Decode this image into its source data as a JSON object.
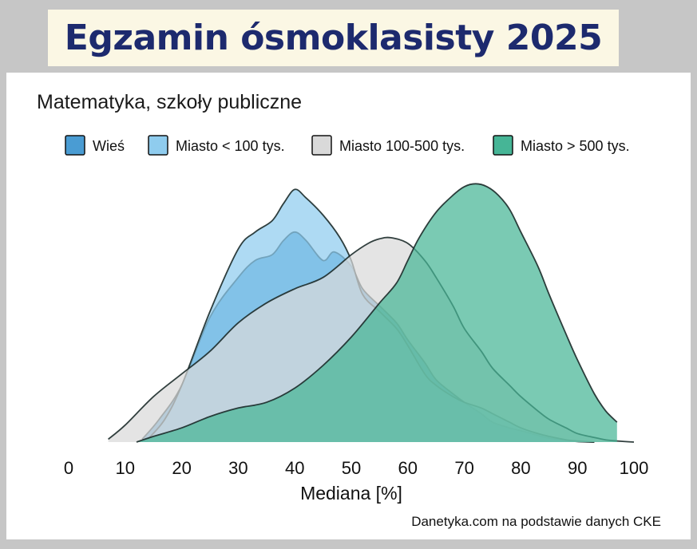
{
  "header": {
    "title": "Egzamin ósmoklasisty 2025"
  },
  "chart_data": {
    "type": "area",
    "subtitle": "Matematyka, szkoły publiczne",
    "xlabel": "Mediana [%]",
    "ylabel": "",
    "xlim": [
      0,
      100
    ],
    "ylim": [
      0,
      0.044
    ],
    "x_ticks": [
      "0",
      "10",
      "20",
      "30",
      "40",
      "50",
      "60",
      "70",
      "80",
      "90",
      "100"
    ],
    "grid": false,
    "legend_position": "top",
    "series": [
      {
        "name": "Wieś",
        "color": "#4a9cd3",
        "x": [
          13,
          16,
          20,
          25,
          30,
          33,
          36,
          38,
          40,
          42,
          45,
          47,
          50,
          52,
          55,
          58,
          60,
          63,
          65,
          68,
          70,
          73,
          75,
          78,
          80,
          83,
          85,
          88,
          90,
          93
        ],
        "y": [
          0.0005,
          0.004,
          0.01,
          0.022,
          0.029,
          0.032,
          0.033,
          0.0355,
          0.037,
          0.0355,
          0.032,
          0.0335,
          0.031,
          0.027,
          0.024,
          0.021,
          0.018,
          0.014,
          0.011,
          0.0085,
          0.007,
          0.005,
          0.0035,
          0.0025,
          0.002,
          0.0012,
          0.0007,
          0.0003,
          0.0001,
          0.0
        ]
      },
      {
        "name": "Miasto < 100 tys.",
        "color": "#8fccee",
        "x": [
          14,
          17,
          20,
          25,
          30,
          33,
          36,
          38,
          40,
          42,
          45,
          48,
          50,
          52,
          55,
          58,
          60,
          63,
          65,
          68,
          70,
          73,
          75,
          78,
          80,
          83,
          85,
          88,
          90,
          93
        ],
        "y": [
          0.0005,
          0.004,
          0.01,
          0.023,
          0.034,
          0.037,
          0.039,
          0.042,
          0.0445,
          0.043,
          0.04,
          0.036,
          0.032,
          0.026,
          0.023,
          0.02,
          0.017,
          0.012,
          0.01,
          0.008,
          0.007,
          0.006,
          0.005,
          0.0035,
          0.0025,
          0.0015,
          0.001,
          0.0004,
          0.0002,
          0.0
        ]
      },
      {
        "name": "Miasto 100-500 tys.",
        "color": "#d9d9d9",
        "x": [
          7,
          10,
          15,
          20,
          25,
          30,
          35,
          40,
          45,
          50,
          53,
          55,
          57,
          60,
          63,
          65,
          68,
          70,
          73,
          75,
          78,
          80,
          83,
          85,
          88,
          90,
          93,
          95,
          97,
          100
        ],
        "y": [
          0.0005,
          0.003,
          0.008,
          0.012,
          0.016,
          0.021,
          0.0245,
          0.027,
          0.029,
          0.033,
          0.035,
          0.0358,
          0.036,
          0.035,
          0.032,
          0.029,
          0.024,
          0.02,
          0.016,
          0.013,
          0.01,
          0.008,
          0.0055,
          0.004,
          0.0025,
          0.0015,
          0.0008,
          0.0004,
          0.0002,
          0.0
        ]
      },
      {
        "name": "Miasto > 500 tys.",
        "color": "#46b596",
        "x": [
          12,
          15,
          20,
          25,
          30,
          35,
          40,
          45,
          50,
          55,
          58,
          60,
          62,
          65,
          68,
          70,
          72,
          74,
          76,
          78,
          80,
          83,
          85,
          88,
          90,
          93,
          95,
          97
        ],
        "y": [
          0.0,
          0.001,
          0.0025,
          0.0045,
          0.006,
          0.007,
          0.0095,
          0.0135,
          0.0185,
          0.0245,
          0.028,
          0.032,
          0.036,
          0.0405,
          0.0435,
          0.045,
          0.0455,
          0.045,
          0.0435,
          0.041,
          0.037,
          0.031,
          0.026,
          0.019,
          0.0145,
          0.0085,
          0.0055,
          0.0035
        ]
      }
    ]
  },
  "source_note": "Danetyka.com na podstawie danych CKE"
}
